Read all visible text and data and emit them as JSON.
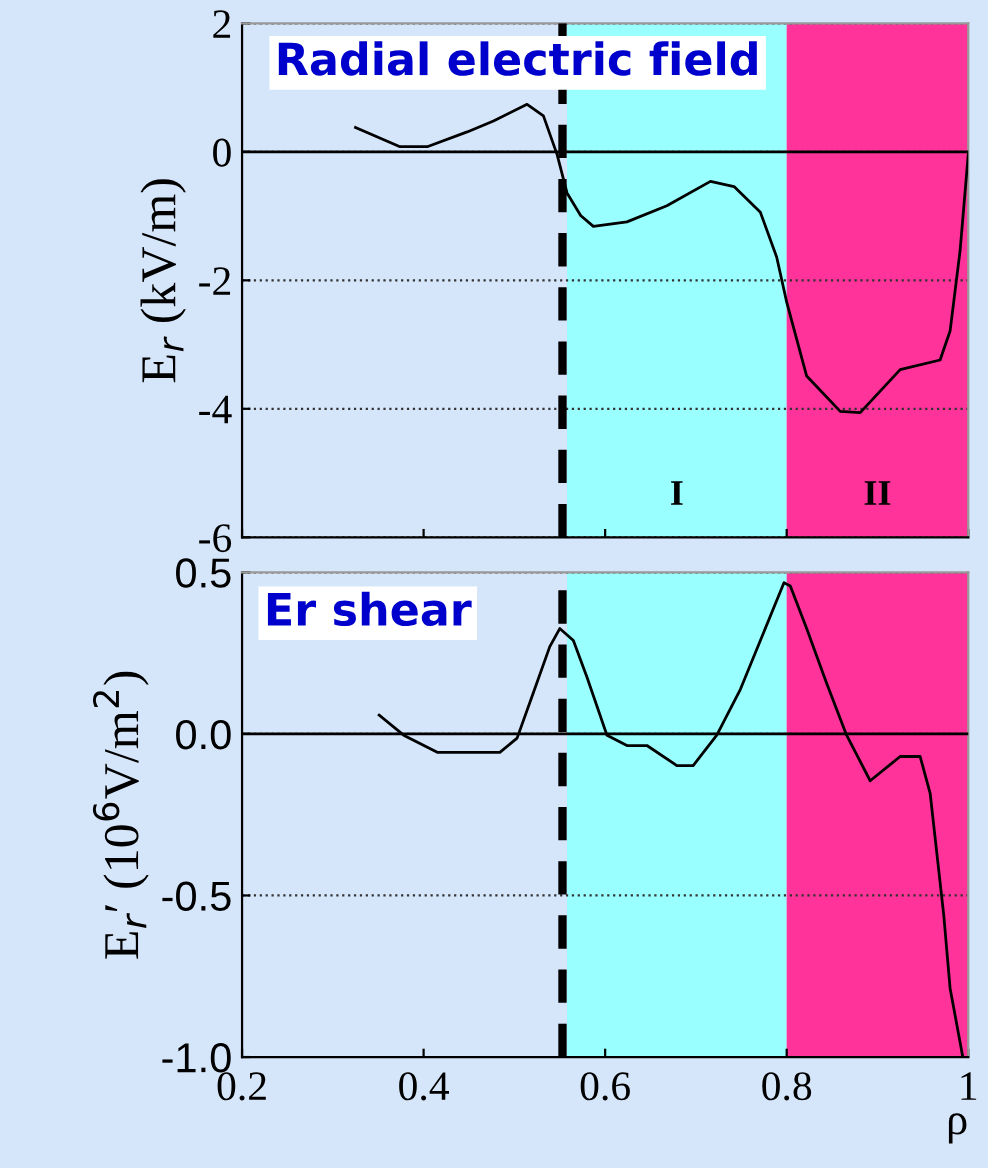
{
  "chart_data": [
    {
      "type": "line",
      "title": "Radial electric field",
      "ylabel": "E$_{r}$ (kV/m)",
      "series": [
        {
          "color": "#000000",
          "x": [
            0.325,
            0.374,
            0.404,
            0.448,
            0.477,
            0.514,
            0.532,
            0.547,
            0.558,
            0.573,
            0.587,
            0.624,
            0.668,
            0.716,
            0.742,
            0.771,
            0.789,
            0.8,
            0.822,
            0.859,
            0.881,
            0.925,
            0.969,
            0.98,
            0.991,
            1.0
          ],
          "values": [
            0.38,
            0.08,
            0.08,
            0.31,
            0.48,
            0.74,
            0.56,
            -0.04,
            -0.64,
            -0.99,
            -1.16,
            -1.09,
            -0.84,
            -0.46,
            -0.54,
            -0.94,
            -1.64,
            -2.34,
            -3.49,
            -4.04,
            -4.06,
            -3.39,
            -3.24,
            -2.79,
            -1.54,
            -0.04
          ]
        }
      ],
      "xlim": [
        0.2,
        1.0
      ],
      "xticks": [
        {
          "value": 0.2,
          "label": null
        },
        {
          "value": 0.4,
          "label": null
        },
        {
          "value": 0.6,
          "label": null
        },
        {
          "value": 0.8,
          "label": null
        },
        {
          "value": 1.0,
          "label": null
        }
      ],
      "ylim": [
        -6,
        2
      ],
      "yticks": [
        -6,
        -4,
        -2,
        0,
        2
      ],
      "tick_labels": "y",
      "grid": "y",
      "line_style": "solid",
      "marker": "none",
      "ref_lines": [
        {
          "axis": "y",
          "value": 0,
          "color": "#000000",
          "line_style": "solid"
        },
        {
          "axis": "x",
          "value": 0.553,
          "color": "#000000",
          "line_style": "dashed"
        }
      ],
      "bands": [
        {
          "axis": "x",
          "from": 0.558,
          "to": 0.8,
          "label": "I",
          "color": "#99ffff"
        },
        {
          "axis": "x",
          "from": 0.8,
          "to": 1.0,
          "label": "II",
          "color": "#ff3399"
        }
      ]
    },
    {
      "type": "line",
      "title": "Er shear",
      "ylabel": "E$_{r}$′ (10$^{6}$V/m$^{2}$)",
      "xlabel": "ρ",
      "series": [
        {
          "color": "#000000",
          "x": [
            0.351,
            0.378,
            0.415,
            0.484,
            0.503,
            0.521,
            0.539,
            0.55,
            0.565,
            0.58,
            0.602,
            0.624,
            0.646,
            0.679,
            0.697,
            0.723,
            0.749,
            0.771,
            0.797,
            0.804,
            0.822,
            0.844,
            0.866,
            0.892,
            0.925,
            0.947,
            0.958,
            0.973,
            0.98,
            0.994
          ],
          "values": [
            0.058,
            -0.004,
            -0.057,
            -0.057,
            -0.013,
            0.128,
            0.27,
            0.326,
            0.289,
            0.175,
            -0.004,
            -0.036,
            -0.036,
            -0.098,
            -0.098,
            -0.004,
            0.138,
            0.289,
            0.468,
            0.458,
            0.326,
            0.157,
            -0.004,
            -0.145,
            -0.07,
            -0.07,
            -0.183,
            -0.56,
            -0.787,
            -1.0
          ]
        }
      ],
      "xlim": [
        0.2,
        1.0
      ],
      "xticks": [
        0.2,
        0.4,
        0.6,
        0.8,
        1
      ],
      "ylim": [
        -1.0,
        0.5
      ],
      "yticks": [
        {
          "value": -1.0,
          "label": "-1.0"
        },
        {
          "value": -0.5,
          "label": "-0.5"
        },
        {
          "value": 0.0,
          "label": "0.0"
        },
        {
          "value": 0.5,
          "label": "0.5"
        }
      ],
      "grid": "y",
      "line_style": "solid",
      "marker": "none",
      "ref_lines": [
        {
          "axis": "y",
          "value": 0,
          "color": "#000000",
          "line_style": "solid"
        },
        {
          "axis": "x",
          "value": 0.553,
          "color": "#000000",
          "line_style": "dashed"
        }
      ],
      "bands": [
        {
          "axis": "x",
          "from": 0.558,
          "to": 0.8,
          "color": "#99ffff"
        },
        {
          "axis": "x",
          "from": 0.8,
          "to": 1.0,
          "color": "#ff3399"
        }
      ]
    }
  ]
}
